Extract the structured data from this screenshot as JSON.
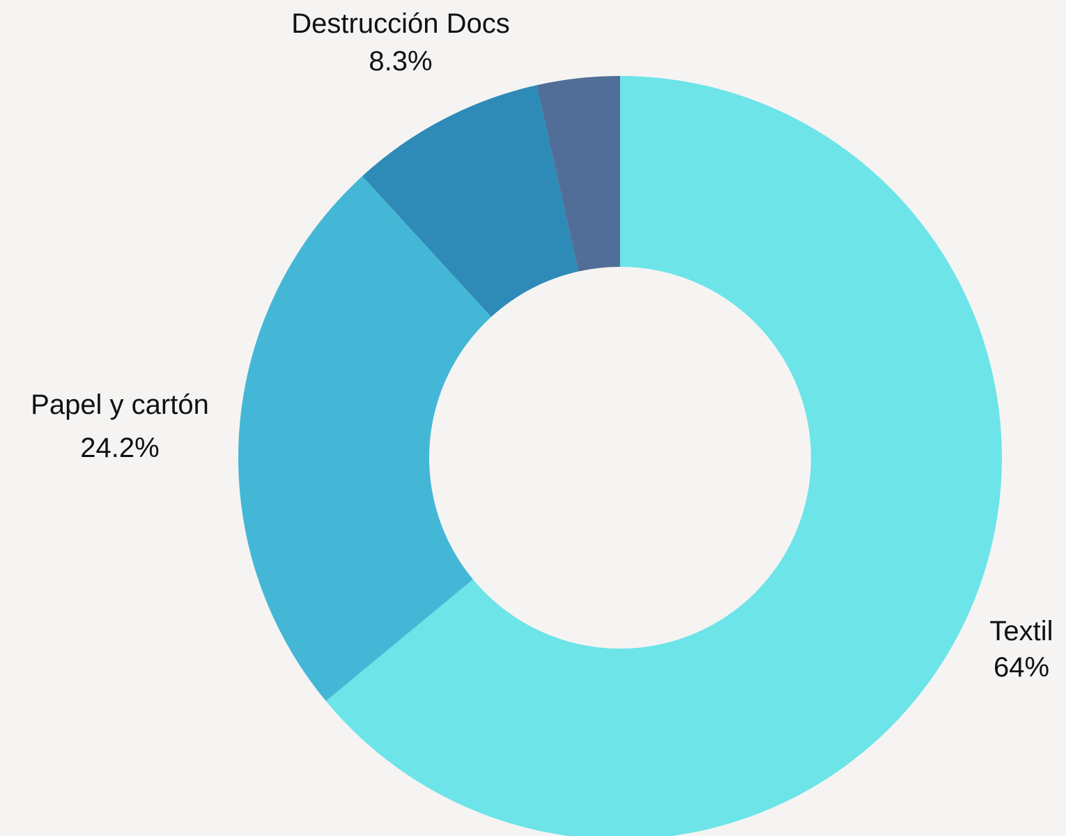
{
  "chart_data": {
    "type": "pie",
    "variant": "donut",
    "title": "",
    "slices": [
      {
        "key": "textil",
        "name": "Textil",
        "value": 64.0,
        "label": "64%",
        "color": "#6ce4e8"
      },
      {
        "key": "papel",
        "name": "Papel y cartón",
        "value": 24.2,
        "label": "24.2%",
        "color": "#45b7d6"
      },
      {
        "key": "destruccion",
        "name": "Destrucción Docs",
        "value": 8.3,
        "label": "8.3%",
        "color": "#2e8bb8"
      },
      {
        "key": "otros",
        "name": "",
        "value": 3.5,
        "label": "",
        "color": "#506e97"
      }
    ],
    "start_angle_deg": 0,
    "direction": "clockwise",
    "legend": "none"
  }
}
